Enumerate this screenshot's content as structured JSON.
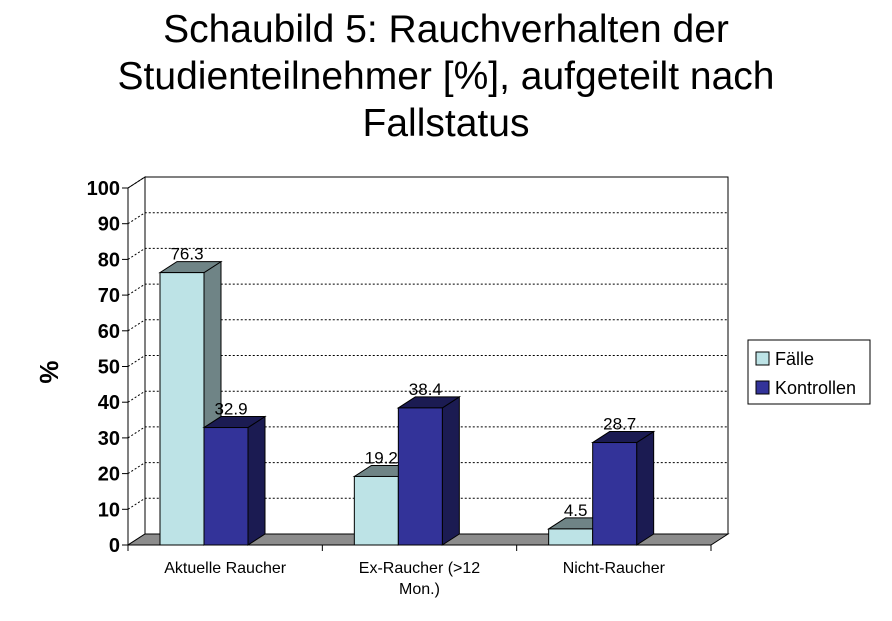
{
  "chart_data": {
    "type": "bar",
    "title_lines": [
      "Schaubild 5: Rauchverhalten der",
      "Studienteilnehmer [%], aufgeteilt nach",
      "Fallstatus"
    ],
    "ylabel": "%",
    "xlabel": "",
    "ylim": [
      0,
      100
    ],
    "yticks": [
      0,
      10,
      20,
      30,
      40,
      50,
      60,
      70,
      80,
      90,
      100
    ],
    "grid": true,
    "grid_style": "dotted",
    "three_d": true,
    "legend_position": "right",
    "categories": [
      [
        "Aktuelle Raucher"
      ],
      [
        "Ex-Raucher (>12",
        "Mon.)"
      ],
      [
        "Nicht-Raucher"
      ]
    ],
    "series": [
      {
        "name": "Fälle",
        "color": "#bde3e6",
        "side_color": "#6f8486",
        "values": [
          76.3,
          19.2,
          4.5
        ]
      },
      {
        "name": "Kontrollen",
        "color": "#333399",
        "side_color": "#1b1b52",
        "values": [
          32.9,
          38.4,
          28.7
        ]
      }
    ]
  }
}
